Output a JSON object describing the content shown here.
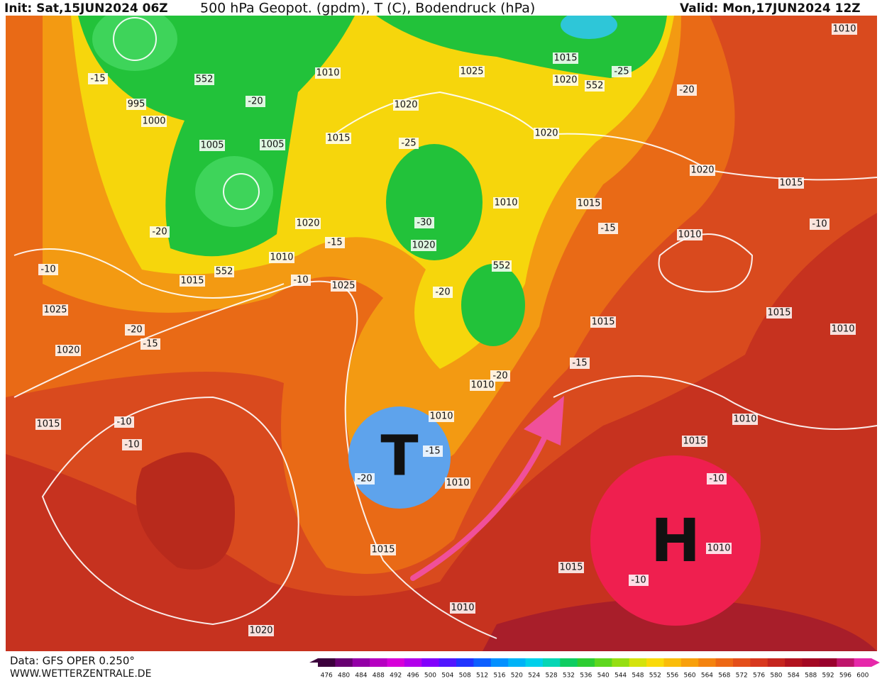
{
  "header": {
    "init": "Init: Sat,15JUN2024 06Z",
    "title": "500 hPa Geopot. (gpdm), T (C), Bodendruck (hPa)",
    "valid": "Valid: Mon,17JUN2024 12Z"
  },
  "footer": {
    "source": "Data: GFS OPER 0.250°",
    "site": "WWW.WETTERZENTRALE.DE"
  },
  "symbols": {
    "low": "T",
    "high": "H"
  },
  "legend": {
    "ticks": [
      476,
      480,
      484,
      488,
      492,
      496,
      500,
      504,
      508,
      512,
      516,
      520,
      524,
      528,
      532,
      536,
      540,
      544,
      548,
      552,
      556,
      560,
      564,
      568,
      572,
      576,
      580,
      584,
      588,
      592,
      596,
      600
    ]
  },
  "labels": [
    "995",
    "1000",
    "-15",
    "552",
    "1005",
    "1005",
    "-20",
    "1010",
    "1020",
    "1025",
    "1015",
    "1020",
    "552",
    "-25",
    "1010",
    "-20",
    "1015",
    "-25",
    "1020",
    "1020",
    "1015",
    "-20",
    "1020",
    "-15",
    "1010",
    "1015",
    "-15",
    "-30",
    "1020",
    "1010",
    "-10",
    "-10",
    "1010",
    "552",
    "1015",
    "-10",
    "1025",
    "552",
    "-20",
    "1025",
    "-20",
    "-15",
    "1015",
    "1015",
    "1010",
    "1020",
    "-15",
    "-20",
    "1010",
    "1010",
    "-15",
    "-20",
    "1010",
    "1015",
    "-10",
    "-10",
    "1010",
    "1015",
    "-10",
    "1015",
    "1010",
    "-10",
    "1015",
    "1010",
    "1020"
  ]
}
